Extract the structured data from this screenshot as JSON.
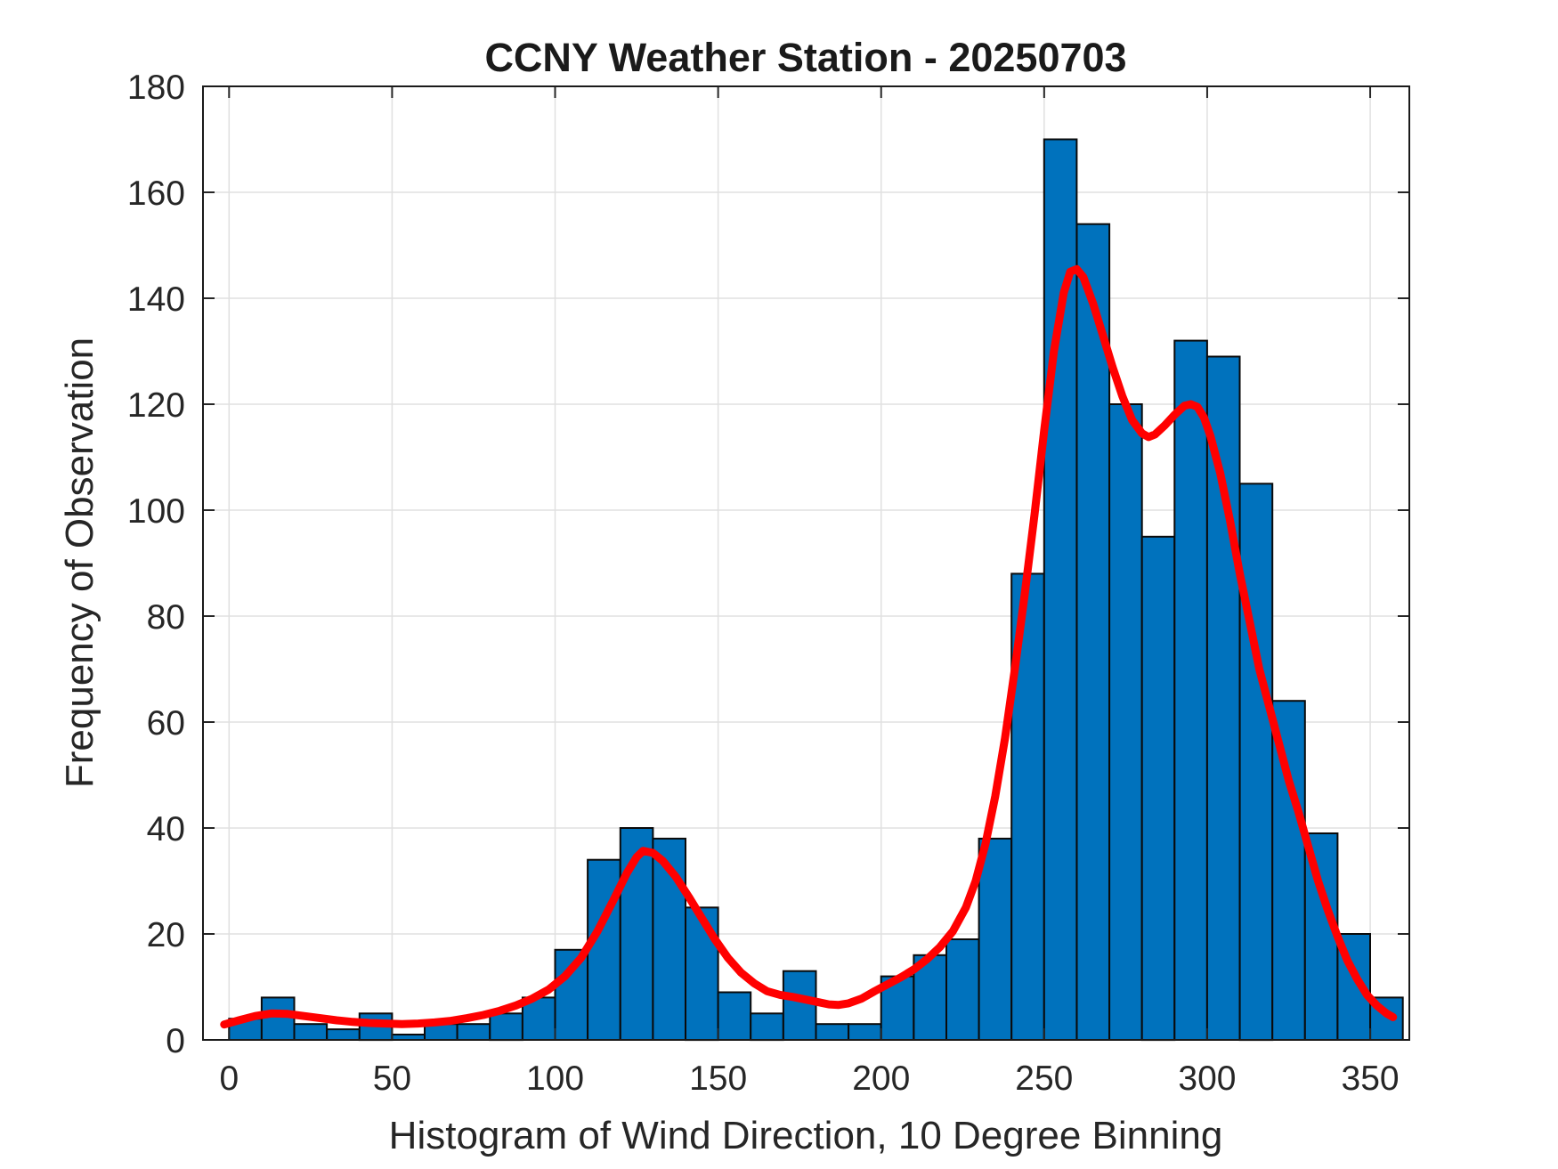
{
  "figure": {
    "background_color": "#ffffff"
  },
  "chart_data": {
    "type": "bar",
    "subtype": "histogram_with_fit_curve",
    "title": "CCNY Weather Station - 20250703",
    "xlabel": "Histogram of Wind Direction, 10 Degree Binning",
    "ylabel": "Frequency of Observation",
    "bin_width_degrees": 10,
    "bin_left_edges": [
      0,
      10,
      20,
      30,
      40,
      50,
      60,
      70,
      80,
      90,
      100,
      110,
      120,
      130,
      140,
      150,
      160,
      170,
      180,
      190,
      200,
      210,
      220,
      230,
      240,
      250,
      260,
      270,
      280,
      290,
      300,
      310,
      320,
      330,
      340,
      350
    ],
    "frequencies": [
      4,
      8,
      3,
      2,
      5,
      1,
      3,
      3,
      5,
      8,
      17,
      34,
      40,
      38,
      25,
      9,
      5,
      13,
      3,
      3,
      12,
      16,
      19,
      38,
      88,
      170,
      154,
      120,
      95,
      132,
      129,
      105,
      64,
      39,
      20,
      8
    ],
    "x_ticks": [
      0,
      50,
      100,
      150,
      200,
      250,
      300,
      350
    ],
    "y_ticks": [
      0,
      20,
      40,
      60,
      80,
      100,
      120,
      140,
      160,
      180
    ],
    "xlim": [
      -8,
      362
    ],
    "ylim": [
      0,
      180
    ],
    "grid": true,
    "bar_fill_color": "#0072BD",
    "bar_edge_color": "#0a0a0a",
    "fit_curve": {
      "name": "smoothed fit",
      "color": "#ff0000",
      "points": [
        [
          -1.5,
          2.9
        ],
        [
          3,
          3.7
        ],
        [
          8,
          4.5
        ],
        [
          13,
          5.0
        ],
        [
          18,
          4.9
        ],
        [
          23,
          4.5
        ],
        [
          28,
          4.1
        ],
        [
          33,
          3.7
        ],
        [
          38,
          3.4
        ],
        [
          43,
          3.2
        ],
        [
          48,
          3.1
        ],
        [
          53,
          3.0
        ],
        [
          58,
          3.1
        ],
        [
          63,
          3.3
        ],
        [
          68,
          3.6
        ],
        [
          73,
          4.1
        ],
        [
          78,
          4.7
        ],
        [
          83,
          5.5
        ],
        [
          88,
          6.5
        ],
        [
          93,
          7.8
        ],
        [
          98,
          9.5
        ],
        [
          103,
          12
        ],
        [
          108,
          15.5
        ],
        [
          113,
          20.5
        ],
        [
          118,
          26.5
        ],
        [
          122,
          31.5
        ],
        [
          125,
          34.5
        ],
        [
          127,
          35.7
        ],
        [
          130,
          35.3
        ],
        [
          133,
          33.8
        ],
        [
          137,
          30.8
        ],
        [
          141,
          27
        ],
        [
          145,
          23
        ],
        [
          149,
          19
        ],
        [
          153,
          15.5
        ],
        [
          157,
          12.7
        ],
        [
          161,
          10.7
        ],
        [
          165,
          9.2
        ],
        [
          169,
          8.5
        ],
        [
          173,
          8.1
        ],
        [
          177,
          7.6
        ],
        [
          181,
          7.1
        ],
        [
          184,
          6.7
        ],
        [
          187,
          6.6
        ],
        [
          190,
          6.9
        ],
        [
          194,
          7.8
        ],
        [
          198,
          9.2
        ],
        [
          202,
          10.5
        ],
        [
          206,
          11.8
        ],
        [
          210,
          13.3
        ],
        [
          214,
          15.2
        ],
        [
          218,
          17.5
        ],
        [
          222,
          20.5
        ],
        [
          226,
          25
        ],
        [
          229,
          30
        ],
        [
          232,
          37
        ],
        [
          235,
          46
        ],
        [
          238,
          57
        ],
        [
          241,
          70
        ],
        [
          244,
          84
        ],
        [
          247,
          99
        ],
        [
          250,
          115
        ],
        [
          253,
          130
        ],
        [
          256,
          141
        ],
        [
          258,
          145
        ],
        [
          260,
          145.5
        ],
        [
          262,
          144
        ],
        [
          265,
          139
        ],
        [
          268,
          133
        ],
        [
          271,
          127
        ],
        [
          274,
          121.5
        ],
        [
          277,
          117
        ],
        [
          280,
          114.5
        ],
        [
          282,
          113.8
        ],
        [
          284,
          114.3
        ],
        [
          287,
          116
        ],
        [
          290,
          118
        ],
        [
          293,
          119.7
        ],
        [
          295,
          120
        ],
        [
          297,
          119.5
        ],
        [
          299,
          117.5
        ],
        [
          301,
          114
        ],
        [
          304,
          107
        ],
        [
          307,
          98
        ],
        [
          310,
          88
        ],
        [
          313,
          79
        ],
        [
          316,
          70
        ],
        [
          319,
          63
        ],
        [
          322,
          56
        ],
        [
          325,
          49
        ],
        [
          328,
          43
        ],
        [
          331,
          36.5
        ],
        [
          334,
          30
        ],
        [
          337,
          24.5
        ],
        [
          340,
          19.5
        ],
        [
          343,
          15
        ],
        [
          346,
          11.5
        ],
        [
          349,
          8.5
        ],
        [
          352,
          6.5
        ],
        [
          355,
          5.0
        ],
        [
          357,
          4.3
        ]
      ]
    }
  }
}
